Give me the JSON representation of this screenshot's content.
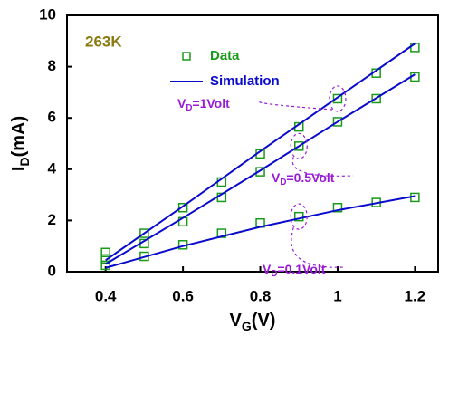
{
  "chart_data": {
    "type": "scatter-line",
    "annotation": "263K",
    "x_label": {
      "main": "V",
      "sub": "G",
      "rest": "(V)"
    },
    "y_label": {
      "main": "I",
      "sub": "D",
      "rest": "(mA)"
    },
    "xlim": [
      0.3,
      1.26
    ],
    "xticks": [
      0.4,
      0.6,
      0.8,
      1.0,
      1.2
    ],
    "ylim": [
      0,
      10
    ],
    "yticks": [
      0,
      2,
      4,
      6,
      8,
      10
    ],
    "series": [
      {
        "name": "Data",
        "color": "#1a9a1a",
        "style": "marker",
        "x": [
          0.4,
          0.5,
          0.6,
          0.7,
          0.8,
          0.9,
          1.0,
          1.1,
          1.2
        ],
        "values": [
          [
            0.75,
            1.5,
            2.5,
            3.5,
            4.6,
            5.65,
            6.75,
            7.75,
            8.75
          ],
          [
            0.5,
            1.1,
            1.95,
            2.9,
            3.9,
            4.9,
            5.85,
            6.75,
            7.6
          ],
          [
            0.25,
            0.6,
            1.05,
            1.5,
            1.9,
            2.15,
            2.5,
            2.7,
            2.9
          ]
        ]
      },
      {
        "name": "Simulation",
        "color": "#0a0acc",
        "style": "line",
        "x": [
          0.4,
          0.6,
          0.8,
          1.0,
          1.2
        ],
        "values": [
          [
            0.45,
            2.55,
            4.7,
            6.8,
            8.9
          ],
          [
            0.3,
            2.1,
            3.95,
            5.85,
            7.7
          ],
          [
            0.15,
            1.0,
            1.75,
            2.4,
            2.95
          ]
        ]
      }
    ],
    "curve_labels": [
      {
        "main": "V",
        "sub": "D",
        "rest": "=1Volt"
      },
      {
        "main": "V",
        "sub": "D",
        "rest": "=0.5Volt"
      },
      {
        "main": "V",
        "sub": "D",
        "rest": "=0.1Volt"
      }
    ],
    "curve_label_color": "#9a1ad6"
  }
}
